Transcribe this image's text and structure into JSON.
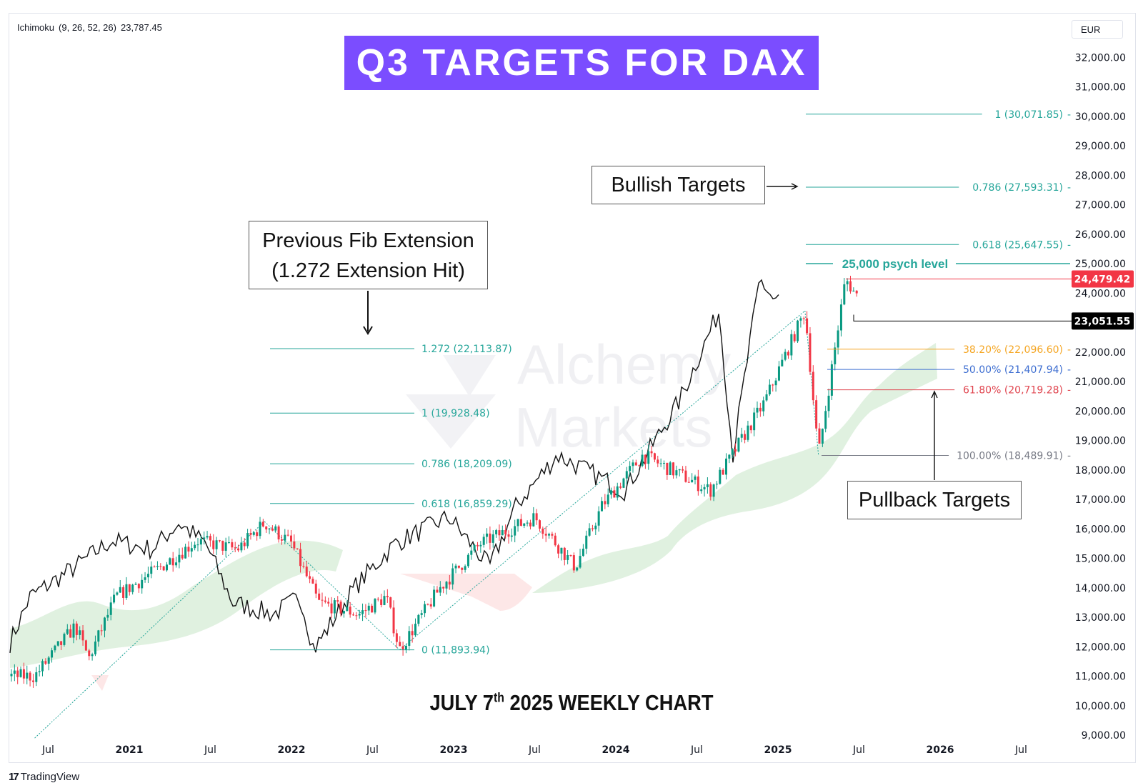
{
  "indicator": {
    "name": "Ichimoku",
    "params": "(9, 26, 52, 26)",
    "value": "23,787.45"
  },
  "currency": "EUR",
  "title": "Q3 TARGETS FOR DAX",
  "callouts": {
    "previous_fib_line1": "Previous Fib Extension",
    "previous_fib_line2": "(1.272 Extension Hit)",
    "bullish": "Bullish Targets",
    "pullback": "Pullback Targets"
  },
  "caption": {
    "prefix": "JULY 7",
    "sup": "th",
    "suffix": " 2025 WEEKLY CHART"
  },
  "watermark": {
    "line1": "Alchemy",
    "line2": "Markets"
  },
  "branding": "TradingView",
  "colors": {
    "fib_teal": "#26a69a",
    "fib_orange": "#f5a623",
    "fib_blue": "#3f6fd1",
    "fib_red": "#e0454f",
    "fib_gray": "#787b86",
    "price_tag_red": "#f23645",
    "price_tag_black": "#000000",
    "bull_candle": "#089981",
    "bear_candle": "#f23645",
    "cloud_green": "#a5d6a7",
    "cloud_red": "#f8bbbb",
    "banner": "#7b4dff"
  },
  "chart_data": {
    "type": "candlestick",
    "ylim": [
      8500,
      32600
    ],
    "y_ticks": [
      "32,000.00",
      "31,000.00",
      "30,000.00",
      "29,000.00",
      "28,000.00",
      "27,000.00",
      "26,000.00",
      "25,000.00",
      "24,000.00",
      "22,000.00",
      "21,000.00",
      "20,000.00",
      "19,000.00",
      "18,000.00",
      "17,000.00",
      "16,000.00",
      "15,000.00",
      "14,000.00",
      "13,000.00",
      "12,000.00",
      "11,000.00",
      "10,000.00",
      "9,000.00"
    ],
    "x_ticks": [
      "Jul",
      "2021",
      "Jul",
      "2022",
      "Jul",
      "2023",
      "Jul",
      "2024",
      "Jul",
      "2025",
      "Jul",
      "2026",
      "Jul"
    ],
    "price_tags": [
      {
        "label": "24,479.42",
        "value": 24479.42,
        "style": "red"
      },
      {
        "label": "23,051.55",
        "value": 23051.55,
        "style": "black"
      }
    ],
    "fib_extension_previous": [
      {
        "label": "1.272 (22,113.87)",
        "value": 22113.87
      },
      {
        "label": "1 (19,928.48)",
        "value": 19928.48
      },
      {
        "label": "0.786 (18,209.09)",
        "value": 18209.09
      },
      {
        "label": "0.618 (16,859.29)",
        "value": 16859.29
      },
      {
        "label": "0 (11,893.94)",
        "value": 11893.94
      }
    ],
    "fib_extension_bullish": [
      {
        "label": "1 (30,071.85)",
        "value": 30071.85
      },
      {
        "label": "0.786 (27,593.31)",
        "value": 27593.31
      },
      {
        "label": "0.618 (25,647.55)",
        "value": 25647.55
      }
    ],
    "psych_level": {
      "label": "25,000 psych level",
      "value": 25000
    },
    "fib_retracement": [
      {
        "label": "38.20% (22,096.60)",
        "value": 22096.6,
        "color": "orange"
      },
      {
        "label": "50.00% (21,407.94)",
        "value": 21407.94,
        "color": "blue"
      },
      {
        "label": "61.80% (20,719.28)",
        "value": 20719.28,
        "color": "red"
      },
      {
        "label": "100.00% (18,489.91)",
        "value": 18489.91,
        "color": "gray"
      }
    ],
    "price_path": [
      [
        "2020-06",
        11000
      ],
      [
        "2020-09",
        12700
      ],
      [
        "2020-10",
        11600
      ],
      [
        "2020-12",
        13700
      ],
      [
        "2021-03",
        14600
      ],
      [
        "2021-06",
        15600
      ],
      [
        "2021-09",
        15300
      ],
      [
        "2021-11",
        16200
      ],
      [
        "2022-01",
        15500
      ],
      [
        "2022-03",
        13500
      ],
      [
        "2022-06",
        13100
      ],
      [
        "2022-08",
        13700
      ],
      [
        "2022-09",
        11900
      ],
      [
        "2022-12",
        14000
      ],
      [
        "2023-03",
        15500
      ],
      [
        "2023-07",
        16400
      ],
      [
        "2023-10",
        14700
      ],
      [
        "2023-12",
        16800
      ],
      [
        "2024-03",
        18500
      ],
      [
        "2024-08",
        17300
      ],
      [
        "2024-12",
        20300
      ],
      [
        "2025-03",
        23400
      ],
      [
        "2025-04",
        18500
      ],
      [
        "2025-06",
        24480
      ],
      [
        "2025-07",
        23790
      ]
    ]
  }
}
